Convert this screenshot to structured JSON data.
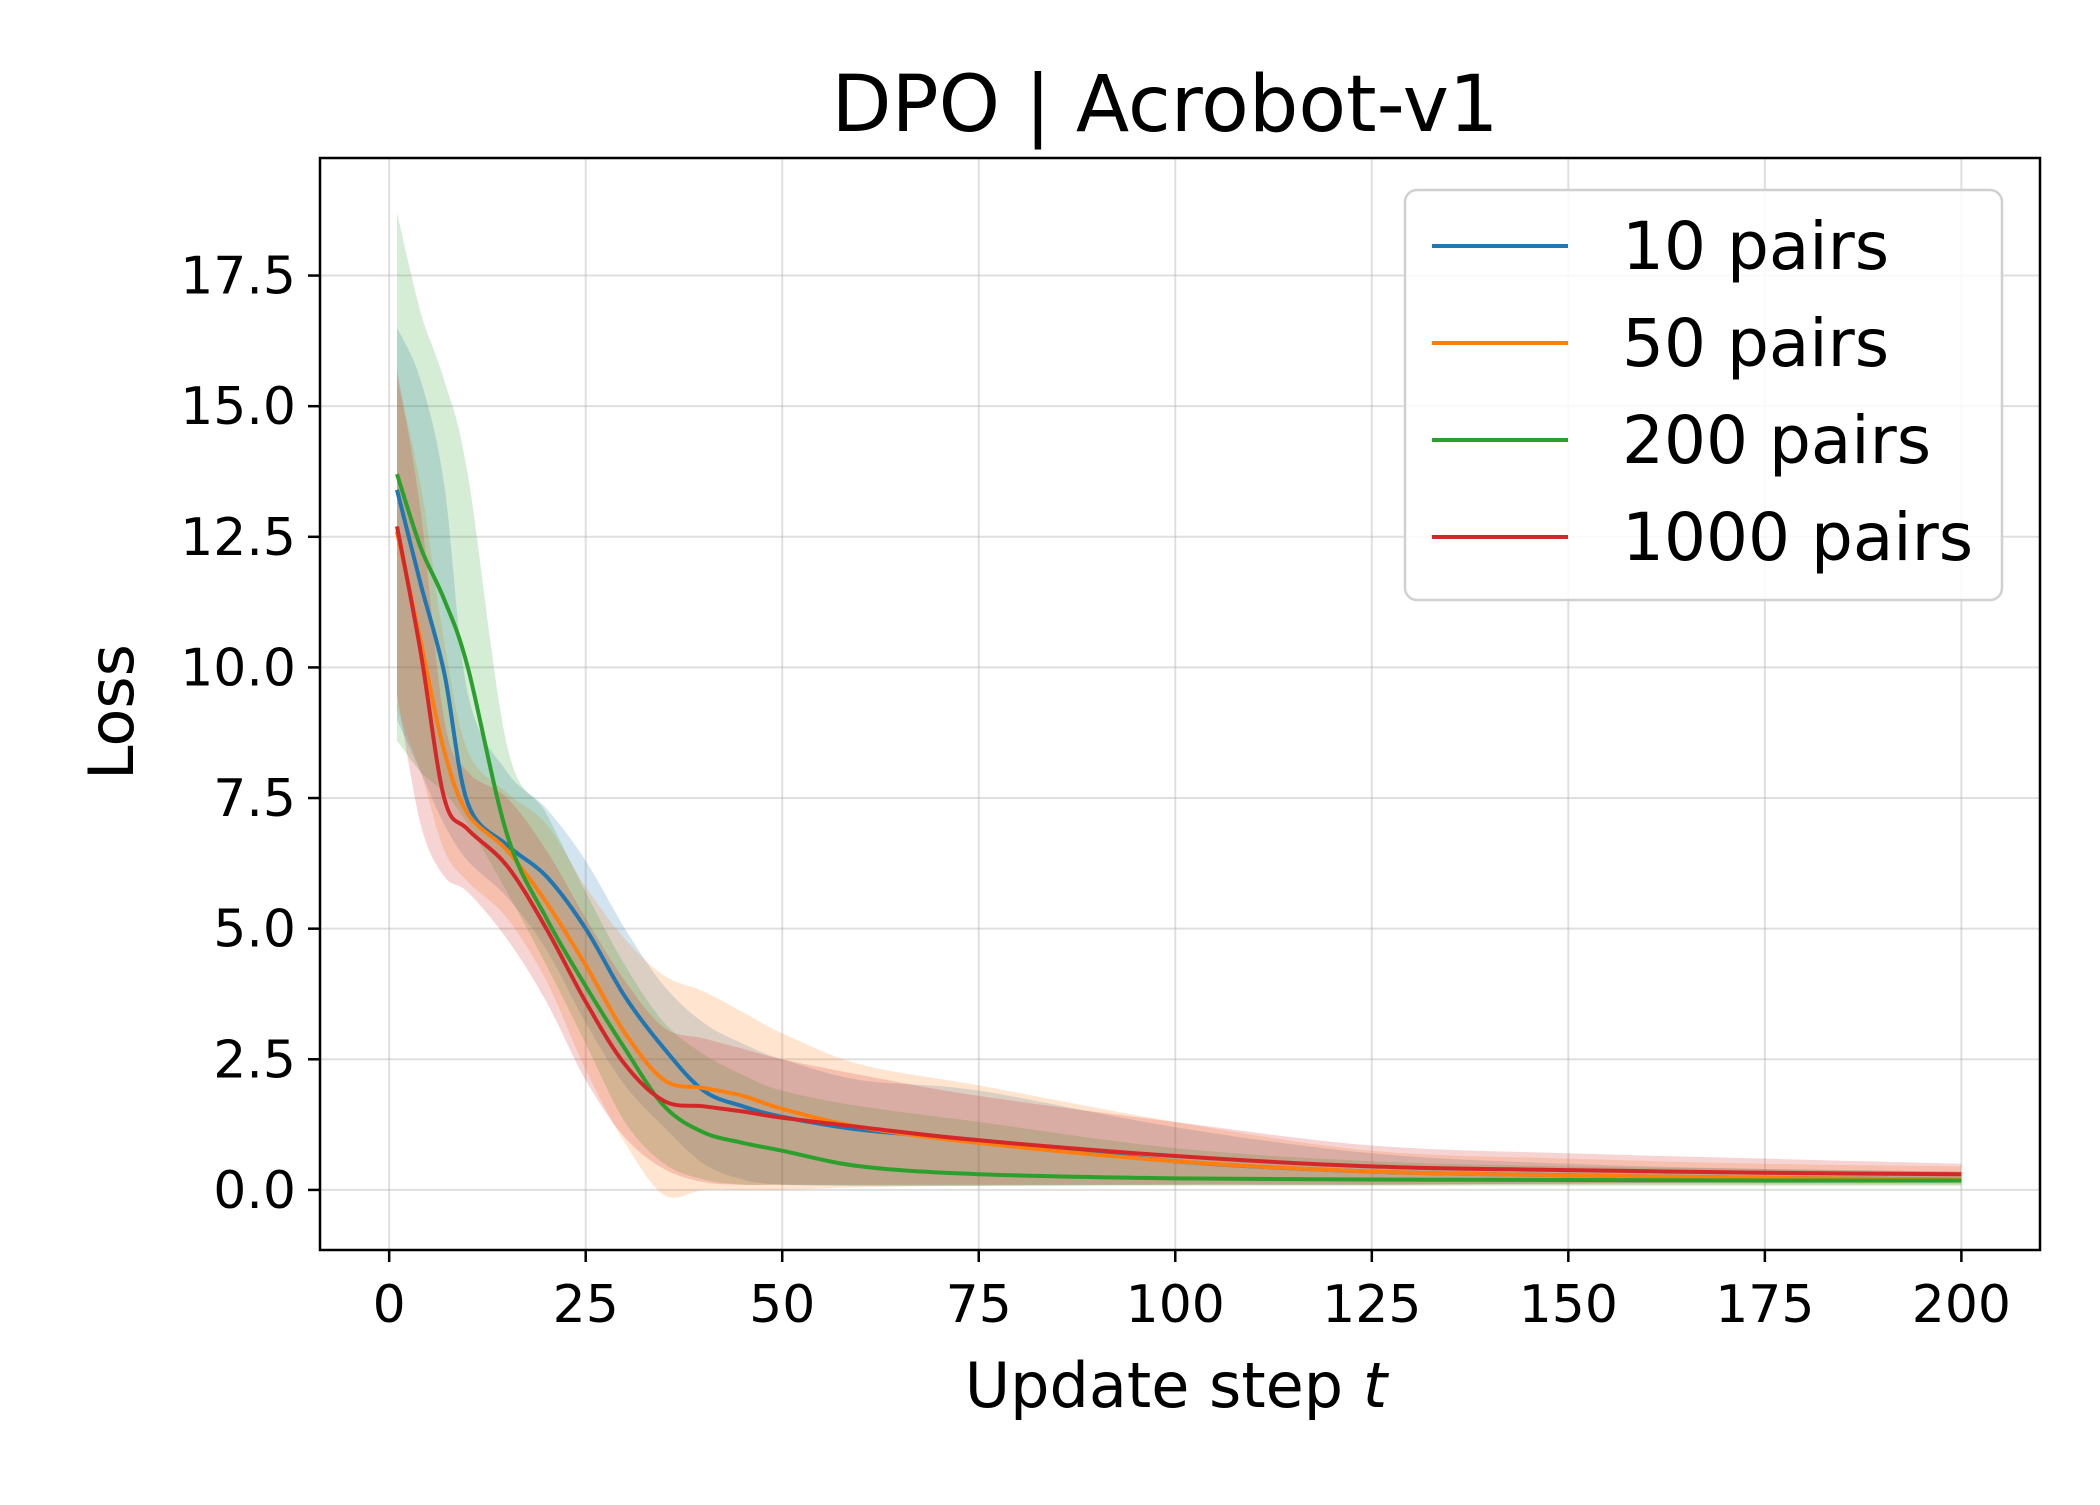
{
  "chart_data": {
    "type": "line",
    "title": "DPO | Acrobot-v1",
    "xlabel": "Update step",
    "xlabel_var": "t",
    "ylabel": "Loss",
    "xlim": [
      -8.8,
      210
    ],
    "ylim": [
      -1.15,
      19.75
    ],
    "xticks": [
      0,
      25,
      50,
      75,
      100,
      125,
      150,
      175,
      200
    ],
    "yticks": [
      0.0,
      2.5,
      5.0,
      7.5,
      10.0,
      12.5,
      15.0,
      17.5
    ],
    "ytick_labels": [
      "0.0",
      "2.5",
      "5.0",
      "7.5",
      "10.0",
      "12.5",
      "15.0",
      "17.5"
    ],
    "grid": true,
    "legend_position": "top-right",
    "x": [
      1,
      4,
      7,
      10,
      15,
      20,
      25,
      30,
      35,
      40,
      45,
      50,
      60,
      75,
      100,
      125,
      150,
      175,
      200
    ],
    "series": [
      {
        "name": "10 pairs",
        "color": "#1f77b4",
        "values": [
          13.4,
          11.6,
          9.9,
          7.4,
          6.6,
          6.0,
          5.0,
          3.7,
          2.7,
          1.9,
          1.6,
          1.4,
          1.15,
          0.95,
          0.55,
          0.35,
          0.28,
          0.23,
          0.2
        ],
        "lower": [
          9.0,
          8.0,
          7.0,
          6.3,
          5.6,
          4.6,
          3.2,
          2.0,
          1.2,
          0.5,
          0.2,
          0.1,
          0.08,
          0.08,
          0.1,
          0.1,
          0.12,
          0.12,
          0.12
        ],
        "upper": [
          16.5,
          15.5,
          13.5,
          9.5,
          8.0,
          7.3,
          6.3,
          5.0,
          3.9,
          3.2,
          2.8,
          2.5,
          2.1,
          1.9,
          1.2,
          0.7,
          0.5,
          0.4,
          0.35
        ]
      },
      {
        "name": "50 pairs",
        "color": "#ff7f0e",
        "values": [
          12.6,
          10.5,
          8.4,
          7.2,
          6.5,
          5.5,
          4.3,
          3.0,
          2.1,
          1.95,
          1.8,
          1.55,
          1.2,
          0.9,
          0.55,
          0.35,
          0.28,
          0.23,
          0.2
        ],
        "lower": [
          9.2,
          8.0,
          6.5,
          5.9,
          5.2,
          4.0,
          2.3,
          0.9,
          -0.1,
          0.0,
          0.0,
          0.0,
          0.05,
          0.08,
          0.1,
          0.1,
          0.1,
          0.1,
          0.1
        ],
        "upper": [
          15.5,
          13.5,
          10.5,
          8.4,
          7.6,
          7.0,
          5.8,
          4.8,
          4.1,
          3.8,
          3.4,
          3.0,
          2.4,
          2.0,
          1.3,
          0.75,
          0.6,
          0.5,
          0.45
        ]
      },
      {
        "name": "200 pairs",
        "color": "#2ca02c",
        "values": [
          13.7,
          12.3,
          11.3,
          10.0,
          6.8,
          5.2,
          3.9,
          2.7,
          1.6,
          1.1,
          0.9,
          0.75,
          0.45,
          0.3,
          0.22,
          0.2,
          0.19,
          0.18,
          0.18
        ],
        "lower": [
          8.6,
          8.0,
          7.6,
          7.0,
          5.7,
          4.3,
          2.8,
          1.3,
          0.5,
          0.2,
          0.1,
          0.1,
          0.08,
          0.08,
          0.08,
          0.08,
          0.08,
          0.08,
          0.08
        ],
        "upper": [
          18.7,
          16.8,
          15.5,
          13.7,
          8.5,
          7.2,
          5.7,
          4.3,
          3.2,
          2.6,
          2.2,
          1.9,
          1.6,
          1.3,
          0.8,
          0.55,
          0.45,
          0.4,
          0.35
        ]
      },
      {
        "name": "1000 pairs",
        "color": "#d62728",
        "values": [
          12.7,
          10.3,
          7.5,
          6.9,
          6.2,
          5.0,
          3.6,
          2.4,
          1.7,
          1.6,
          1.5,
          1.38,
          1.2,
          0.95,
          0.65,
          0.45,
          0.38,
          0.33,
          0.3
        ],
        "lower": [
          9.5,
          7.0,
          6.0,
          5.7,
          4.8,
          3.6,
          2.1,
          1.0,
          0.4,
          0.15,
          0.1,
          0.1,
          0.1,
          0.1,
          0.1,
          0.1,
          0.12,
          0.15,
          0.15
        ],
        "upper": [
          15.7,
          13.0,
          9.0,
          8.0,
          7.5,
          6.5,
          5.2,
          4.0,
          3.1,
          2.9,
          2.7,
          2.5,
          2.2,
          1.8,
          1.3,
          0.85,
          0.7,
          0.6,
          0.5
        ]
      }
    ]
  }
}
